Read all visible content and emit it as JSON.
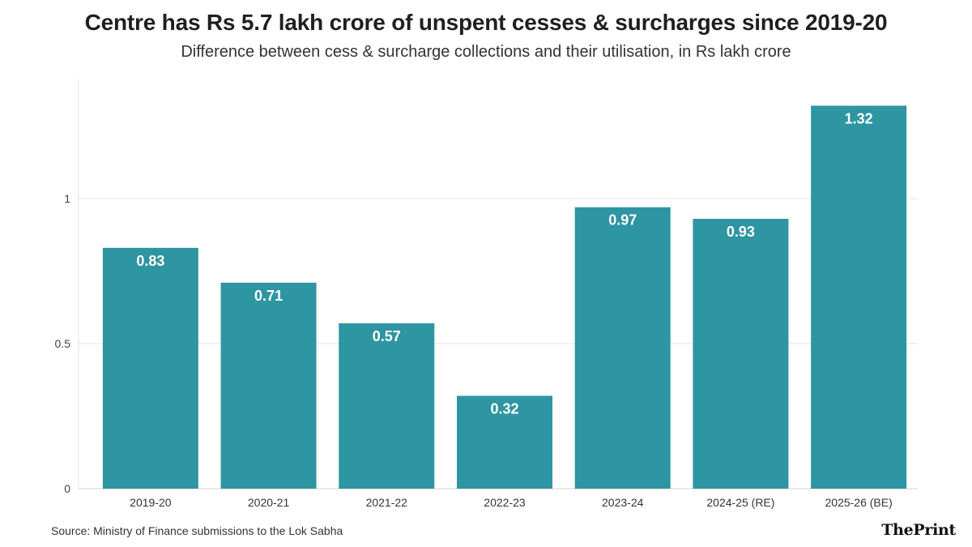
{
  "header": {
    "title": "Centre has Rs 5.7 lakh crore of unspent cesses & surcharges since 2019-20",
    "subtitle": "Difference between cess & surcharge collections and their utilisation, in Rs lakh crore"
  },
  "footer": {
    "source": "Source: Ministry of Finance submissions to the Lok Sabha",
    "logo": "ThePrint"
  },
  "colors": {
    "bar": "#2e95a2",
    "grid": "#e3e3e3",
    "label": "#ffffff"
  },
  "chart_data": {
    "type": "bar",
    "title": "Centre has Rs 5.7 lakh crore of unspent cesses & surcharges since 2019-20",
    "subtitle": "Difference between cess & surcharge collections and their utilisation, in Rs lakh crore",
    "xlabel": "",
    "ylabel": "",
    "categories": [
      "2019-20",
      "2020-21",
      "2021-22",
      "2022-23",
      "2023-24",
      "2024-25 (RE)",
      "2025-26 (BE)"
    ],
    "values": [
      0.83,
      0.71,
      0.57,
      0.32,
      0.97,
      0.93,
      1.32
    ],
    "data_labels": [
      "0.83",
      "0.71",
      "0.57",
      "0.32",
      "0.97",
      "0.93",
      "1.32"
    ],
    "ylim": [
      0,
      1.4
    ],
    "yticks": [
      0,
      0.5,
      1
    ],
    "ytick_labels": [
      "0",
      "0.5",
      "1"
    ],
    "grid": true
  }
}
